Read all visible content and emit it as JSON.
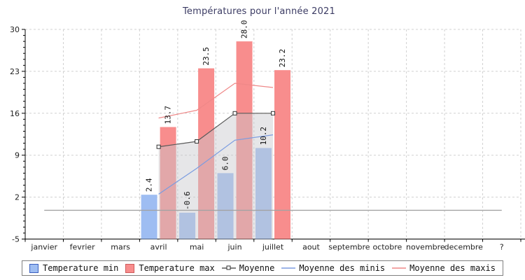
{
  "chart_data": {
    "type": "bar",
    "title": "Températures pour l'année 2021",
    "categories": [
      "janvier",
      "fevrier",
      "mars",
      "avril",
      "mai",
      "juin",
      "juillet",
      "aout",
      "septembre",
      "octobre",
      "novembre",
      "decembre",
      "?"
    ],
    "ylim": [
      -5,
      30
    ],
    "y_ticks": [
      30,
      23,
      16,
      9,
      2,
      -5
    ],
    "y_minor_step": 1,
    "grid": true,
    "legend_position": "bottom",
    "bar_value_labels": [
      "2.4",
      "13.7",
      "-0.6",
      "23.5",
      "6.0",
      "28.0",
      "10.2",
      "23.2"
    ],
    "series": [
      {
        "name": "Temperature min",
        "type": "bar",
        "color": "#9ebdf2",
        "border": "#3a5fbf",
        "values": [
          null,
          null,
          null,
          2.4,
          -0.6,
          6.0,
          10.2,
          null,
          null,
          null,
          null,
          null,
          null
        ]
      },
      {
        "name": "Temperature max",
        "type": "bar",
        "color": "#f88d8d",
        "border": "#cf5b5b",
        "values": [
          null,
          null,
          null,
          13.7,
          23.5,
          28.0,
          23.2,
          null,
          null,
          null,
          null,
          null,
          null
        ]
      },
      {
        "name": "Moyenne",
        "type": "line",
        "marker": "square",
        "color": "#5a5a5a",
        "area_fill": "rgba(200,200,205,0.45)",
        "values": [
          null,
          null,
          null,
          10.4,
          11.3,
          16.0,
          16.0,
          null,
          null,
          null,
          null,
          null,
          null
        ]
      },
      {
        "name": "Moyenne des minis",
        "type": "line",
        "color": "#7b9ce0",
        "values": [
          null,
          null,
          null,
          2.5,
          6.8,
          11.5,
          12.4,
          null,
          null,
          null,
          null,
          null,
          null
        ]
      },
      {
        "name": "Moyenne des maxis",
        "type": "line",
        "color": "#ef8888",
        "values": [
          null,
          null,
          null,
          15.2,
          16.5,
          21.0,
          20.3,
          null,
          null,
          null,
          null,
          null,
          null
        ]
      }
    ],
    "baseline": {
      "value": -0.2,
      "color": "#a3a3a3"
    }
  },
  "style": {
    "grid_color": "#d0d0d0",
    "axis_color": "#000000",
    "tick_label_color": "#222222",
    "bar_label_color": "#111111",
    "title_color": "#3c3c64"
  }
}
